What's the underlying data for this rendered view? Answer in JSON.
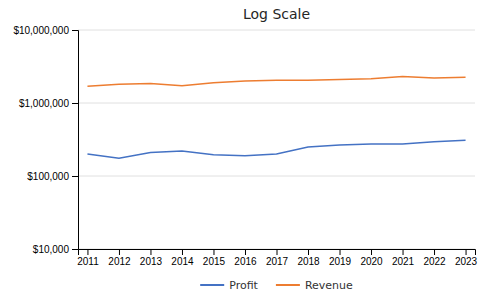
{
  "chart_data": {
    "type": "line",
    "title": "Log Scale",
    "x": [
      2011,
      2012,
      2013,
      2014,
      2015,
      2016,
      2017,
      2018,
      2019,
      2020,
      2021,
      2022,
      2023
    ],
    "series": [
      {
        "name": "Profit",
        "color": "#4472C4",
        "values": [
          200000,
          175000,
          210000,
          220000,
          195000,
          190000,
          200000,
          250000,
          265000,
          275000,
          275000,
          295000,
          310000
        ]
      },
      {
        "name": "Revenue",
        "color": "#ED7D31",
        "values": [
          1700000,
          1800000,
          1850000,
          1720000,
          1900000,
          2000000,
          2050000,
          2050000,
          2100000,
          2150000,
          2300000,
          2200000,
          2250000
        ]
      }
    ],
    "xlim": [
      2010.7,
      2023.3
    ],
    "xticks": [
      2011,
      2012,
      2013,
      2014,
      2015,
      2016,
      2017,
      2018,
      2019,
      2020,
      2021,
      2022,
      2023
    ],
    "ylim": [
      10000,
      10000000
    ],
    "yticks": [
      {
        "value": 10000,
        "label": "$10,000"
      },
      {
        "value": 100000,
        "label": "$100,000"
      },
      {
        "value": 1000000,
        "label": "$1,000,000"
      },
      {
        "value": 10000000,
        "label": "$10,000,000"
      }
    ],
    "log": "y",
    "grid": true,
    "legend": "bottom"
  }
}
